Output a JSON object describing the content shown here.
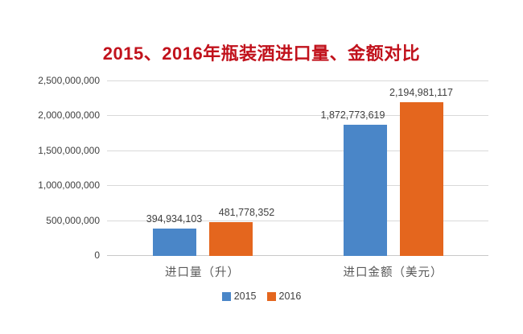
{
  "page": {
    "background": "#FFFFFF"
  },
  "chart_data": {
    "type": "bar",
    "title": "2015、2016年瓶装酒进口量、金额对比",
    "title_color": "#C1121C",
    "categories": [
      "进口量（升）",
      "进口金额（美元）"
    ],
    "series": [
      {
        "name": "2015",
        "color": "#4A86C8",
        "values": [
          394934103,
          1872773619
        ],
        "labels": [
          "394,934,103",
          "1,872,773,619"
        ]
      },
      {
        "name": "2016",
        "color": "#E4661E",
        "values": [
          481778352,
          2194981117
        ],
        "labels": [
          "481,778,352",
          "2,194,981,117"
        ]
      }
    ],
    "ylim": [
      0,
      2500000000
    ],
    "y_ticks": [
      2500000000,
      2000000000,
      1500000000,
      1000000000,
      500000000,
      0
    ],
    "y_tick_labels": [
      "2,500,000,000",
      "2,000,000,000",
      "1,500,000,000",
      "1,000,000,000",
      "500,000,000",
      "0"
    ],
    "grid": true,
    "gridline_color": "#D9D9D9",
    "axis_text_color": "#404040",
    "category_text_color": "#595959",
    "legend_position": "bottom"
  }
}
